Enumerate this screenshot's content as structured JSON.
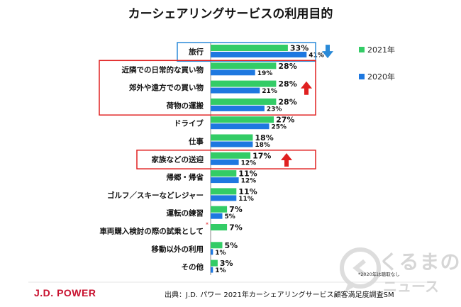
{
  "colors": {
    "series_2021": "#33cc66",
    "series_2020": "#1e78e0",
    "highlight_box": "#e02020",
    "highlight_box_blue": "#2a8ad8",
    "arrow_up": "#e02020",
    "arrow_down": "#2a8ad8",
    "brand": "#c8102e"
  },
  "chart_data": {
    "type": "bar",
    "orientation": "horizontal",
    "title": "カーシェアリングサービスの利用目的",
    "categories": [
      "旅行",
      "近隣での日常的な買い物",
      "郊外や遠方での買い物",
      "荷物の運搬",
      "ドライブ",
      "仕事",
      "家族などの送迎",
      "帰郷・帰省",
      "ゴルフ／スキーなどレジャー",
      "運転の練習",
      "車両購入検討の際の試乗として",
      "移動以外の利用",
      "その他"
    ],
    "series": [
      {
        "name": "2021年",
        "values": [
          33,
          28,
          28,
          28,
          27,
          18,
          17,
          11,
          11,
          7,
          7,
          5,
          3
        ],
        "labels": [
          "33%",
          "28%",
          "28%",
          "28%",
          "27%",
          "18%",
          "17%",
          "11%",
          "11%",
          "7%",
          "7%",
          "5%",
          "3%"
        ]
      },
      {
        "name": "2020年",
        "values": [
          41,
          19,
          21,
          23,
          25,
          18,
          12,
          12,
          11,
          5,
          null,
          1,
          1
        ],
        "labels": [
          "41%",
          "19%",
          "21%",
          "23%",
          "25%",
          "18%",
          "12%",
          "12%",
          "11%",
          "5%",
          "",
          "1%",
          "1%"
        ]
      }
    ],
    "category_marker": {
      "index": 10,
      "text": "*"
    },
    "highlight_groups": [
      {
        "indices": [
          0
        ],
        "color": "blue",
        "arrow": "down"
      },
      {
        "indices": [
          1,
          2,
          3
        ],
        "color": "red",
        "arrow": "up"
      },
      {
        "indices": [
          6
        ],
        "color": "red",
        "arrow": "up"
      }
    ],
    "legend": [
      {
        "label": "2021年",
        "color_key": "series_2021"
      },
      {
        "label": "2020年",
        "color_key": "series_2020"
      }
    ],
    "legend_position": "right"
  },
  "footer": {
    "brand": "J.D. POWER",
    "source": "出典：J.D. パワー 2021年カーシェアリングサービス顧客満足度調査SM",
    "footnote": "*2020年は聴取なし"
  },
  "watermark": {
    "text": "くるまの",
    "sub": "ニュース",
    "icon": "car-speech-icon"
  }
}
